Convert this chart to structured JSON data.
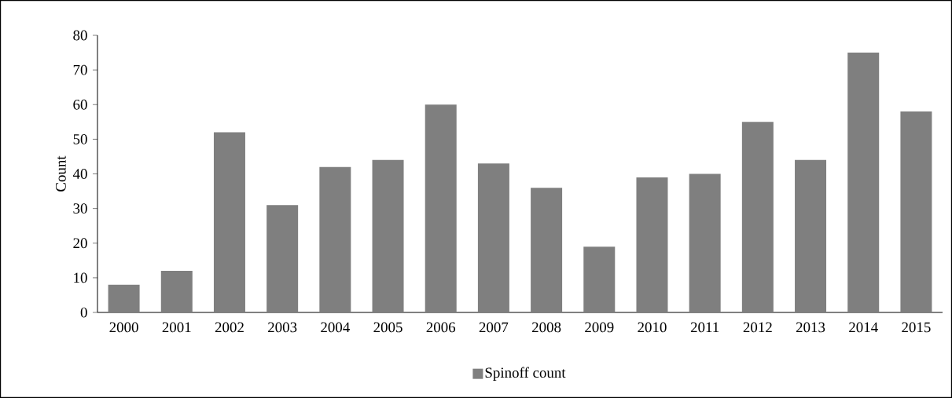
{
  "chart_data": {
    "type": "bar",
    "ylabel": "Count",
    "categories": [
      "2000",
      "2001",
      "2002",
      "2003",
      "2004",
      "2005",
      "2006",
      "2007",
      "2008",
      "2009",
      "2010",
      "2011",
      "2012",
      "2013",
      "2014",
      "2015"
    ],
    "series": [
      {
        "name": "Spinoff count",
        "color": "#7f7f7f",
        "values": [
          8,
          12,
          52,
          31,
          42,
          44,
          60,
          43,
          36,
          19,
          39,
          40,
          55,
          44,
          75,
          58
        ]
      }
    ],
    "ylim": [
      0,
      80
    ],
    "yticks": [
      0,
      10,
      20,
      30,
      40,
      50,
      60,
      70,
      80
    ],
    "grid": false,
    "legend": "bottom"
  }
}
